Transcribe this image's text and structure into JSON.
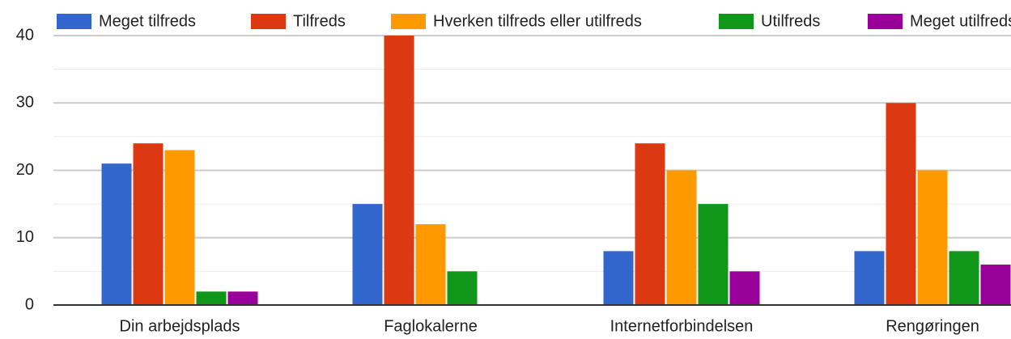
{
  "chart_data": {
    "type": "bar",
    "categories": [
      "Din arbejdsplads",
      "Faglokalerne",
      "Internetforbindelsen",
      "Rengøringen"
    ],
    "series": [
      {
        "name": "Meget tilfreds",
        "color": "#3366cc",
        "values": [
          21,
          15,
          8,
          8
        ]
      },
      {
        "name": "Tilfreds",
        "color": "#dc3912",
        "values": [
          24,
          40,
          24,
          30
        ]
      },
      {
        "name": "Hverken tilfreds eller utilfreds",
        "color": "#ff9900",
        "values": [
          23,
          12,
          20,
          20
        ]
      },
      {
        "name": "Utilfreds",
        "color": "#109618",
        "values": [
          2,
          5,
          15,
          8
        ]
      },
      {
        "name": "Meget utilfreds",
        "color": "#990099",
        "values": [
          2,
          0,
          5,
          6
        ]
      }
    ],
    "ylim": [
      0,
      40
    ],
    "yticks": [
      0,
      10,
      20,
      30,
      40
    ],
    "yminor": [
      5,
      15,
      25,
      35
    ],
    "grid": true,
    "legend": "top"
  }
}
